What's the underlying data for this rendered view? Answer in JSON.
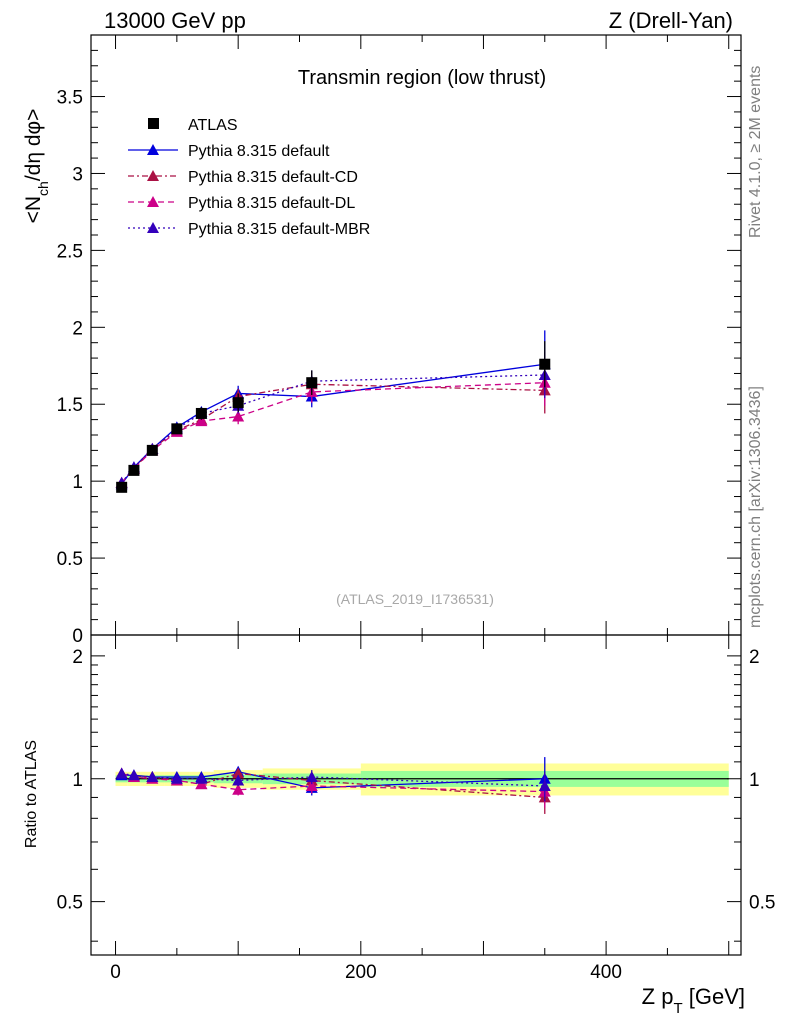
{
  "header": {
    "energy_label": "13000 GeV pp",
    "process_label": "Z (Drell-Yan)"
  },
  "side_labels": {
    "rivet": "Rivet 4.1.0, ≥ 2M events",
    "mcplots": "mcplots.cern.ch [arXiv:1306.3436]"
  },
  "chart_data": [
    {
      "type": "scatter",
      "panel": "main",
      "title": "Transmin region (low thrust)",
      "ylabel": "<N_ch/dη dφ>",
      "xlabel": "Z p_T [GeV]",
      "xlim": [
        -20,
        510
      ],
      "ylim": [
        0,
        3.9
      ],
      "yticks": [
        "0",
        "0.5",
        "1",
        "1.5",
        "2",
        "2.5",
        "3",
        "3.5"
      ],
      "reference_label": "(ATLAS_2019_I1736531)",
      "legend_position": "top-left",
      "x": [
        5,
        15,
        30,
        50,
        70,
        100,
        160,
        350
      ],
      "series": [
        {
          "name": "ATLAS",
          "color": "#000000",
          "marker": "square",
          "line": "none",
          "values": [
            0.96,
            1.07,
            1.2,
            1.34,
            1.44,
            1.51,
            1.64,
            1.76
          ],
          "errors": [
            0.02,
            0.02,
            0.02,
            0.03,
            0.04,
            0.06,
            0.08,
            0.15
          ]
        },
        {
          "name": "Pythia 8.315 default",
          "color": "#0000dd",
          "marker": "triangle",
          "line": "solid",
          "values": [
            0.98,
            1.09,
            1.21,
            1.35,
            1.45,
            1.57,
            1.55,
            1.76
          ],
          "errors": [
            0.01,
            0.01,
            0.02,
            0.02,
            0.03,
            0.05,
            0.07,
            0.22
          ]
        },
        {
          "name": "Pythia 8.315 default-CD",
          "color": "#aa1144",
          "marker": "triangle",
          "line": "dashdot",
          "values": [
            0.99,
            1.08,
            1.21,
            1.33,
            1.4,
            1.55,
            1.63,
            1.59
          ],
          "errors": [
            0.01,
            0.01,
            0.02,
            0.02,
            0.03,
            0.05,
            0.07,
            0.15
          ]
        },
        {
          "name": "Pythia 8.315 default-DL",
          "color": "#cc0088",
          "marker": "triangle",
          "line": "dashed",
          "values": [
            0.99,
            1.08,
            1.2,
            1.32,
            1.39,
            1.42,
            1.58,
            1.64
          ],
          "errors": [
            0.01,
            0.01,
            0.02,
            0.02,
            0.03,
            0.05,
            0.07,
            0.15
          ]
        },
        {
          "name": "Pythia 8.315 default-MBR",
          "color": "#3300bb",
          "marker": "triangle",
          "line": "dotted",
          "values": [
            0.99,
            1.09,
            1.21,
            1.34,
            1.44,
            1.49,
            1.65,
            1.69
          ],
          "errors": [
            0.01,
            0.01,
            0.02,
            0.02,
            0.03,
            0.05,
            0.07,
            0.15
          ]
        }
      ]
    },
    {
      "type": "scatter",
      "panel": "ratio",
      "ylabel": "Ratio to ATLAS",
      "xlabel": "Z p_T [GeV]",
      "xlim": [
        -20,
        510
      ],
      "ylim": [
        0.37,
        2.25
      ],
      "yticks": [
        "0.5",
        "1",
        "2"
      ],
      "xticks": [
        "0",
        "200",
        "400"
      ],
      "bands": [
        {
          "x0": 0,
          "x1": 10,
          "yellow": [
            0.96,
            1.04
          ],
          "green": [
            0.98,
            1.02
          ]
        },
        {
          "x0": 10,
          "x1": 20,
          "yellow": [
            0.96,
            1.04
          ],
          "green": [
            0.98,
            1.02
          ]
        },
        {
          "x0": 20,
          "x1": 40,
          "yellow": [
            0.96,
            1.04
          ],
          "green": [
            0.98,
            1.02
          ]
        },
        {
          "x0": 40,
          "x1": 60,
          "yellow": [
            0.96,
            1.04
          ],
          "green": [
            0.98,
            1.02
          ]
        },
        {
          "x0": 60,
          "x1": 80,
          "yellow": [
            0.96,
            1.04
          ],
          "green": [
            0.98,
            1.02
          ]
        },
        {
          "x0": 80,
          "x1": 120,
          "yellow": [
            0.95,
            1.05
          ],
          "green": [
            0.975,
            1.025
          ]
        },
        {
          "x0": 120,
          "x1": 200,
          "yellow": [
            0.94,
            1.06
          ],
          "green": [
            0.97,
            1.03
          ]
        },
        {
          "x0": 200,
          "x1": 500,
          "yellow": [
            0.91,
            1.09
          ],
          "green": [
            0.955,
            1.045
          ]
        }
      ],
      "x": [
        5,
        15,
        30,
        50,
        70,
        100,
        160,
        350
      ],
      "series": [
        {
          "name": "Pythia 8.315 default",
          "color": "#0000dd",
          "line": "solid",
          "values": [
            1.02,
            1.02,
            1.01,
            1.01,
            1.01,
            1.04,
            0.95,
            1.0
          ],
          "errors": [
            0.01,
            0.01,
            0.01,
            0.01,
            0.02,
            0.03,
            0.04,
            0.13
          ]
        },
        {
          "name": "Pythia 8.315 default-CD",
          "color": "#aa1144",
          "line": "dashdot",
          "values": [
            1.03,
            1.01,
            1.01,
            0.99,
            0.97,
            1.03,
            0.99,
            0.9
          ],
          "errors": [
            0.01,
            0.01,
            0.01,
            0.01,
            0.02,
            0.03,
            0.04,
            0.08
          ]
        },
        {
          "name": "Pythia 8.315 default-DL",
          "color": "#cc0088",
          "line": "dashed",
          "values": [
            1.03,
            1.01,
            1.0,
            0.99,
            0.97,
            0.94,
            0.96,
            0.93
          ],
          "errors": [
            0.01,
            0.01,
            0.01,
            0.01,
            0.02,
            0.03,
            0.04,
            0.08
          ]
        },
        {
          "name": "Pythia 8.315 default-MBR",
          "color": "#3300bb",
          "line": "dotted",
          "values": [
            1.03,
            1.02,
            1.01,
            1.0,
            1.0,
            0.99,
            1.01,
            0.96
          ],
          "errors": [
            0.01,
            0.01,
            0.01,
            0.01,
            0.02,
            0.03,
            0.04,
            0.08
          ]
        }
      ]
    }
  ]
}
